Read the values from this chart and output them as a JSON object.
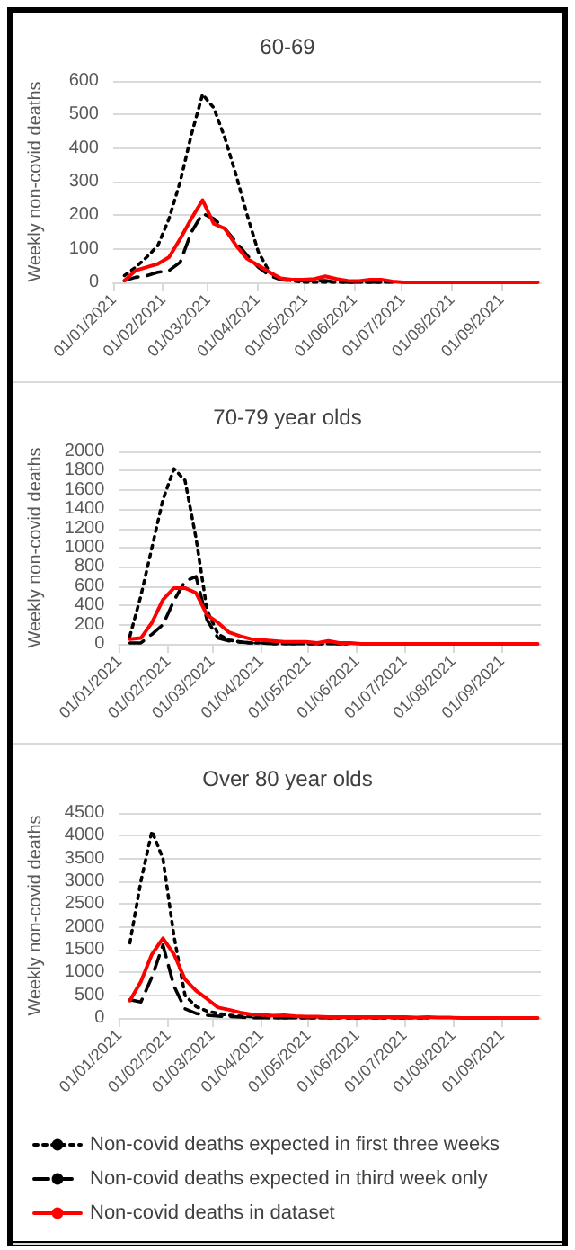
{
  "chart_data": [
    {
      "type": "line",
      "title": "60-69",
      "ylabel": "Weekly non-covid deaths",
      "x": [
        "2021-01-08",
        "2021-01-15",
        "2021-01-22",
        "2021-01-29",
        "2021-02-05",
        "2021-02-12",
        "2021-02-19",
        "2021-02-26",
        "2021-03-05",
        "2021-03-12",
        "2021-03-19",
        "2021-03-26",
        "2021-04-02",
        "2021-04-09",
        "2021-04-16",
        "2021-04-23",
        "2021-04-30",
        "2021-05-07",
        "2021-05-14",
        "2021-05-21",
        "2021-05-28",
        "2021-06-04",
        "2021-06-11",
        "2021-06-18",
        "2021-06-25",
        "2021-07-02",
        "2021-07-09",
        "2021-07-16",
        "2021-07-23",
        "2021-07-30",
        "2021-08-06",
        "2021-08-13",
        "2021-08-20",
        "2021-08-27",
        "2021-09-03",
        "2021-09-10",
        "2021-09-17",
        "2021-09-24"
      ],
      "series": [
        {
          "color": "#000000",
          "line_style": "dotted",
          "values": [
            20,
            45,
            75,
            110,
            190,
            300,
            440,
            560,
            520,
            430,
            320,
            200,
            90,
            30,
            10,
            5,
            0,
            0,
            0,
            0,
            0,
            0,
            0,
            0,
            0,
            null,
            null,
            null,
            null,
            null,
            null,
            null,
            null,
            null,
            null,
            null,
            null,
            null
          ]
        },
        {
          "color": "#000000",
          "line_style": "dashed",
          "values": [
            5,
            15,
            20,
            30,
            35,
            60,
            150,
            205,
            190,
            160,
            120,
            80,
            45,
            20,
            8,
            5,
            5,
            5,
            5,
            0,
            0,
            0,
            0,
            0,
            0,
            null,
            null,
            null,
            null,
            null,
            null,
            null,
            null,
            null,
            null,
            null,
            null,
            null
          ]
        },
        {
          "color": "#ff0000",
          "line_style": "solid",
          "values": [
            5,
            35,
            45,
            55,
            75,
            130,
            190,
            245,
            175,
            160,
            110,
            70,
            50,
            30,
            12,
            8,
            8,
            10,
            18,
            10,
            5,
            4,
            8,
            8,
            3,
            0,
            0,
            0,
            0,
            0,
            0,
            0,
            0,
            0,
            0,
            0,
            0,
            0
          ]
        }
      ],
      "xlim": [
        "2021-01-01",
        "2021-09-26"
      ],
      "xticks": [
        {
          "value": "2021-01-01",
          "label": "01/01/2021"
        },
        {
          "value": "2021-02-01",
          "label": "01/02/2021"
        },
        {
          "value": "2021-03-01",
          "label": "01/03/2021"
        },
        {
          "value": "2021-04-01",
          "label": "01/04/2021"
        },
        {
          "value": "2021-05-01",
          "label": "01/05/2021"
        },
        {
          "value": "2021-06-01",
          "label": "01/06/2021"
        },
        {
          "value": "2021-07-01",
          "label": "01/07/2021"
        },
        {
          "value": "2021-08-01",
          "label": "01/08/2021"
        },
        {
          "value": "2021-09-01",
          "label": "01/09/2021"
        }
      ],
      "ylim": [
        0,
        600
      ],
      "yticks": [
        0,
        100,
        200,
        300,
        400,
        500,
        600
      ],
      "grid": "y",
      "marker": "none",
      "legend": false
    },
    {
      "type": "line",
      "title": "70-79 year olds",
      "ylabel": "Weekly non-covid deaths",
      "x": [
        "2021-01-08",
        "2021-01-15",
        "2021-01-22",
        "2021-01-29",
        "2021-02-05",
        "2021-02-12",
        "2021-02-19",
        "2021-02-26",
        "2021-03-05",
        "2021-03-12",
        "2021-03-19",
        "2021-03-26",
        "2021-04-02",
        "2021-04-09",
        "2021-04-16",
        "2021-04-23",
        "2021-04-30",
        "2021-05-07",
        "2021-05-14",
        "2021-05-21",
        "2021-05-28",
        "2021-06-04",
        "2021-06-11",
        "2021-06-18",
        "2021-06-25",
        "2021-07-02",
        "2021-07-09",
        "2021-07-16",
        "2021-07-23",
        "2021-07-30",
        "2021-08-06",
        "2021-08-13",
        "2021-08-20",
        "2021-08-27",
        "2021-09-03",
        "2021-09-10",
        "2021-09-17",
        "2021-09-24"
      ],
      "series": [
        {
          "color": "#000000",
          "line_style": "dotted",
          "values": [
            80,
            500,
            1000,
            1500,
            1820,
            1700,
            1100,
            350,
            100,
            40,
            20,
            10,
            10,
            0,
            0,
            0,
            0,
            0,
            0,
            0,
            0,
            null,
            null,
            null,
            null,
            null,
            null,
            null,
            null,
            null,
            null,
            null,
            null,
            null,
            null,
            null,
            null,
            null
          ]
        },
        {
          "color": "#000000",
          "line_style": "dashed",
          "values": [
            10,
            10,
            100,
            200,
            450,
            650,
            700,
            250,
            60,
            30,
            20,
            10,
            10,
            0,
            0,
            0,
            0,
            0,
            0,
            0,
            0,
            null,
            null,
            null,
            null,
            null,
            null,
            null,
            null,
            null,
            null,
            null,
            null,
            null,
            null,
            null,
            null,
            null
          ]
        },
        {
          "color": "#ff0000",
          "line_style": "solid",
          "values": [
            50,
            60,
            220,
            460,
            580,
            580,
            530,
            300,
            220,
            120,
            80,
            50,
            40,
            30,
            20,
            20,
            20,
            10,
            30,
            10,
            10,
            0,
            0,
            0,
            0,
            0,
            0,
            0,
            0,
            0,
            0,
            0,
            0,
            0,
            0,
            0,
            0,
            0
          ]
        }
      ],
      "xlim": [
        "2021-01-01",
        "2021-09-26"
      ],
      "xticks": [
        {
          "value": "2021-01-01",
          "label": "01/01/2021"
        },
        {
          "value": "2021-02-01",
          "label": "01/02/2021"
        },
        {
          "value": "2021-03-01",
          "label": "01/03/2021"
        },
        {
          "value": "2021-04-01",
          "label": "01/04/2021"
        },
        {
          "value": "2021-05-01",
          "label": "01/05/2021"
        },
        {
          "value": "2021-06-01",
          "label": "01/06/2021"
        },
        {
          "value": "2021-07-01",
          "label": "01/07/2021"
        },
        {
          "value": "2021-08-01",
          "label": "01/08/2021"
        },
        {
          "value": "2021-09-01",
          "label": "01/09/2021"
        }
      ],
      "ylim": [
        0,
        2000
      ],
      "yticks": [
        0,
        200,
        400,
        600,
        800,
        1000,
        1200,
        1400,
        1600,
        1800,
        2000
      ],
      "grid": "y",
      "marker": "none",
      "legend": false
    },
    {
      "type": "line",
      "title": "Over 80 year olds",
      "ylabel": "Weekly non-covid deaths",
      "x": [
        "2021-01-08",
        "2021-01-15",
        "2021-01-22",
        "2021-01-29",
        "2021-02-05",
        "2021-02-12",
        "2021-02-19",
        "2021-02-26",
        "2021-03-05",
        "2021-03-12",
        "2021-03-19",
        "2021-03-26",
        "2021-04-02",
        "2021-04-09",
        "2021-04-16",
        "2021-04-23",
        "2021-04-30",
        "2021-05-07",
        "2021-05-14",
        "2021-05-21",
        "2021-05-28",
        "2021-06-04",
        "2021-06-11",
        "2021-06-18",
        "2021-06-25",
        "2021-07-02",
        "2021-07-09",
        "2021-07-16",
        "2021-07-23",
        "2021-07-30",
        "2021-08-06",
        "2021-08-13",
        "2021-08-20",
        "2021-08-27",
        "2021-09-03",
        "2021-09-10",
        "2021-09-17",
        "2021-09-24"
      ],
      "series": [
        {
          "name": "Non-covid deaths expected in first three weeks",
          "color": "#000000",
          "line_style": "dotted",
          "values": [
            1650,
            3000,
            4100,
            3500,
            1800,
            500,
            250,
            150,
            100,
            60,
            40,
            30,
            20,
            0,
            0,
            0,
            0,
            0,
            0,
            0,
            0,
            0,
            0,
            0,
            0,
            0,
            0,
            0,
            null,
            null,
            null,
            null,
            null,
            null,
            null,
            null,
            null,
            null
          ]
        },
        {
          "name": "Non-covid deaths expected in third week only",
          "color": "#000000",
          "line_style": "dashed",
          "values": [
            400,
            350,
            900,
            1600,
            700,
            200,
            100,
            60,
            40,
            30,
            20,
            0,
            0,
            0,
            0,
            0,
            0,
            0,
            0,
            0,
            0,
            0,
            0,
            0,
            0,
            0,
            0,
            0,
            null,
            null,
            null,
            null,
            null,
            null,
            null,
            null,
            null,
            null
          ]
        },
        {
          "name": "Non-covid deaths in dataset",
          "color": "#ff0000",
          "line_style": "solid",
          "values": [
            380,
            800,
            1400,
            1750,
            1400,
            850,
            600,
            420,
            230,
            180,
            120,
            80,
            70,
            50,
            60,
            40,
            30,
            30,
            20,
            20,
            20,
            20,
            20,
            20,
            20,
            20,
            10,
            20,
            10,
            10,
            0,
            0,
            0,
            0,
            0,
            0,
            0,
            0
          ]
        }
      ],
      "xlim": [
        "2021-01-01",
        "2021-09-26"
      ],
      "xticks": [
        {
          "value": "2021-01-01",
          "label": "01/01/2021"
        },
        {
          "value": "2021-02-01",
          "label": "01/02/2021"
        },
        {
          "value": "2021-03-01",
          "label": "01/03/2021"
        },
        {
          "value": "2021-04-01",
          "label": "01/04/2021"
        },
        {
          "value": "2021-05-01",
          "label": "01/05/2021"
        },
        {
          "value": "2021-06-01",
          "label": "01/06/2021"
        },
        {
          "value": "2021-07-01",
          "label": "01/07/2021"
        },
        {
          "value": "2021-08-01",
          "label": "01/08/2021"
        },
        {
          "value": "2021-09-01",
          "label": "01/09/2021"
        }
      ],
      "ylim": [
        0,
        4500
      ],
      "yticks": [
        0,
        500,
        1000,
        1500,
        2000,
        2500,
        3000,
        3500,
        4000,
        4500
      ],
      "grid": "y",
      "marker": "none",
      "legend": "bottom"
    }
  ]
}
